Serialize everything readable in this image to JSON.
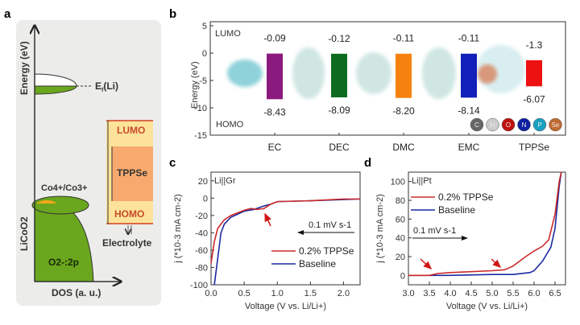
{
  "panel_labels": [
    "a",
    "b",
    "c",
    "d"
  ],
  "panel_a": {
    "y_axis_label": "Energy (eV)",
    "x_axis_label": "DOS (a. u.)",
    "fermi_label": "E",
    "fermi_sub": "f",
    "fermi_suffix": "(Li)",
    "redox_label": "Co4+/Co3+",
    "o2p_label": "O2-:2p",
    "material_label": "LiCoO2",
    "lumo": "LUMO",
    "homo": "HOMO",
    "molecule": "TPPSe",
    "electrolyte": "Electrolyte"
  },
  "chart_data": [
    {
      "type": "bar",
      "panel": "b",
      "ylabel": "Energy (eV)",
      "ylim": [
        -15,
        5
      ],
      "yticks": [
        5,
        0,
        -5,
        -10,
        -15
      ],
      "categories": [
        "EC",
        "DEC",
        "DMC",
        "EMC",
        "TPPSe"
      ],
      "lumo": [
        -0.09,
        -0.12,
        -0.11,
        -0.11,
        -1.3
      ],
      "homo": [
        -8.43,
        -8.09,
        -8.2,
        -8.14,
        -6.07
      ],
      "lumo_labels": [
        "-0.09",
        "-0.12",
        "-0.11",
        "-0.11",
        "-1.3"
      ],
      "homo_labels": [
        "-8.43",
        "-8.09",
        "-8.20",
        "-8.14",
        "-6.07"
      ],
      "colors": [
        "#8b1a7e",
        "#0d6b1f",
        "#f5820f",
        "#1020b8",
        "#ee1111"
      ],
      "annotations": [
        "LUMO",
        "HOMO"
      ],
      "atom_legend": [
        {
          "label": "C",
          "color": "#666666"
        },
        {
          "label": "H",
          "color": "#cccccc"
        },
        {
          "label": "O",
          "color": "#c01010"
        },
        {
          "label": "N",
          "color": "#1020a0"
        },
        {
          "label": "P",
          "color": "#1aa0c0"
        },
        {
          "label": "Se",
          "color": "#c06a30"
        }
      ]
    },
    {
      "type": "line",
      "panel": "c",
      "title": "Li||Gr",
      "xlabel": "Voltage (V vs. Li/Li+)",
      "ylabel": "j (*10-3 mA cm-2)",
      "xlim": [
        0,
        2.25
      ],
      "ylim": [
        -100,
        30
      ],
      "xticks": [
        0.0,
        0.5,
        1.0,
        1.5,
        2.0
      ],
      "yticks": [
        20,
        0,
        -20,
        -40,
        -60,
        -80,
        -100
      ],
      "annotation": "0.1 mV s-1",
      "legend": "bottom-right",
      "series": [
        {
          "name": "0.2% TPPSe",
          "color": "#cc2a2a",
          "x": [
            0,
            0.05,
            0.1,
            0.2,
            0.3,
            0.5,
            0.6,
            0.7,
            0.8,
            0.9,
            1.0,
            1.5,
            2.0,
            2.25
          ],
          "y": [
            -75,
            -50,
            -35,
            -25,
            -20,
            -14,
            -12,
            -13,
            -12,
            -7,
            -4,
            -3,
            -1,
            -1
          ]
        },
        {
          "name": "Baseline",
          "color": "#1a2aa0",
          "x": [
            0.05,
            0.1,
            0.15,
            0.2,
            0.3,
            0.5,
            0.65,
            0.8,
            0.9,
            1.0,
            1.5,
            2.25
          ],
          "y": [
            -100,
            -70,
            -40,
            -30,
            -22,
            -15,
            -13,
            -9,
            -7,
            -4,
            -3,
            -1
          ]
        }
      ]
    },
    {
      "type": "line",
      "panel": "d",
      "title": "Li||Pt",
      "xlabel": "Voltage (V vs. Li/Li+)",
      "ylabel": "j (*10-3 mA cm-2)",
      "xlim": [
        3.0,
        6.75
      ],
      "ylim": [
        -10,
        110
      ],
      "xticks": [
        3.0,
        3.5,
        4.0,
        4.5,
        5.0,
        5.5,
        6.0,
        6.5
      ],
      "yticks": [
        0,
        20,
        40,
        60,
        80,
        100
      ],
      "annotation": "0.1 mV s-1",
      "legend": "top-left",
      "series": [
        {
          "name": "0.2% TPPSe",
          "color": "#cc2a2a",
          "x": [
            3.0,
            3.5,
            3.7,
            4.0,
            4.5,
            5.0,
            5.3,
            5.5,
            5.8,
            6.0,
            6.2,
            6.35,
            6.5,
            6.6,
            6.65
          ],
          "y": [
            0,
            0,
            2,
            3,
            4,
            5,
            6,
            10,
            20,
            26,
            31,
            38,
            65,
            100,
            110
          ]
        },
        {
          "name": "Baseline",
          "color": "#1a2aa0",
          "x": [
            3.0,
            4.0,
            5.0,
            5.5,
            5.9,
            6.0,
            6.2,
            6.4,
            6.5,
            6.6,
            6.65
          ],
          "y": [
            0,
            0,
            1,
            1,
            3,
            5,
            15,
            30,
            50,
            95,
            110
          ]
        }
      ]
    }
  ]
}
